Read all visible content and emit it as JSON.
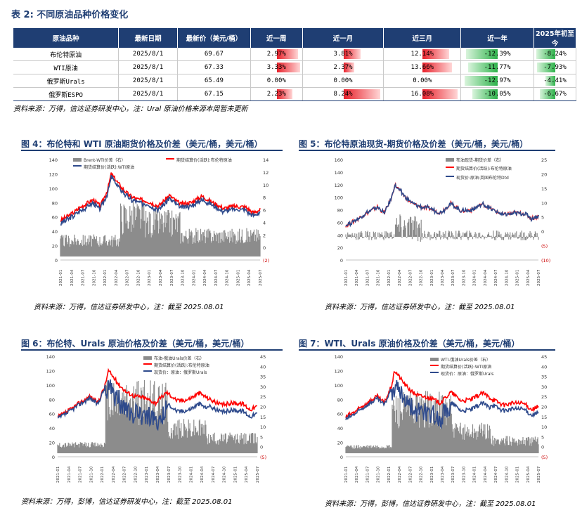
{
  "table": {
    "title": "表 2: 不同原油品种价格变化",
    "headers": [
      "原油品种",
      "最新日期",
      "最新价（美元/桶）",
      "近一周",
      "近一月",
      "近三月",
      "近一年",
      "2025年初至今"
    ],
    "rows": [
      {
        "name": "布伦特原油",
        "date": "2025/8/1",
        "price": "69.67",
        "changes": [
          "2.97%",
          "3.81%",
          "12.14%",
          "-12.39%",
          "-8.24%"
        ],
        "pcts": [
          2.97,
          3.81,
          12.14,
          -12.39,
          -8.24
        ]
      },
      {
        "name": "WTI原油",
        "date": "2025/8/1",
        "price": "67.33",
        "changes": [
          "3.33%",
          "2.37%",
          "13.66%",
          "-11.77%",
          "-7.93%"
        ],
        "pcts": [
          3.33,
          2.37,
          13.66,
          -11.77,
          -7.93
        ]
      },
      {
        "name": "俄罗斯Urals",
        "date": "2025/8/1",
        "price": "65.49",
        "changes": [
          "0.00%",
          "0.00%",
          "0.00%",
          "-12.97%",
          "-4.41%"
        ],
        "pcts": [
          0,
          0,
          0,
          -12.97,
          -4.41
        ]
      },
      {
        "name": "俄罗斯ESPO",
        "date": "2025/8/1",
        "price": "67.15",
        "changes": [
          "2.23%",
          "8.24%",
          "16.08%",
          "-10.05%",
          "-6.67%"
        ],
        "pcts": [
          2.23,
          8.24,
          16.08,
          -10.05,
          -6.67
        ]
      }
    ],
    "source": "资料来源：万得，信达证券研发中心，注：Ural 原油价格来源本周暂未更新",
    "colors": {
      "header_bg": "#1f3e73",
      "positive": "#e8202a",
      "negative": "#2db24a"
    }
  },
  "figures": [
    {
      "title": "图 4：布伦特和 WTI 原油期货价格及价差（美元/桶，美元/桶）",
      "legend": [
        "Brent-WTI价差（右）",
        "期货结算价(活跃):布伦特原油",
        "期货结算价(活跃):WTI原油"
      ],
      "source": "资料来源：万得，信达证券研发中心，注：截至 2025.08.01",
      "left_ticks": [
        "0",
        "20",
        "40",
        "60",
        "80",
        "100",
        "120",
        "140"
      ],
      "right_ticks": [
        "(2)",
        "0",
        "2",
        "4",
        "6",
        "8",
        "10",
        "12",
        "14"
      ]
    },
    {
      "title": "图 5：布伦特原油现货-期货价格及价差（美元/桶，美元/桶）",
      "legend": [
        "布油现货-期货价差（右）",
        "期货结算价(活跃):布伦特原油",
        "现货价:原油:英国布伦特Dtd"
      ],
      "source": "资料来源：万得，信达证券研发中心，注：截至 2025.08.01",
      "left_ticks": [
        "0",
        "20",
        "40",
        "60",
        "80",
        "100",
        "120",
        "140",
        "160"
      ],
      "right_ticks": [
        "(10)",
        "(5)",
        "0",
        "5",
        "10",
        "15",
        "20",
        "25"
      ]
    },
    {
      "title": "图 6：布伦特、Urals 原油价格及价差（美元/桶，美元/桶）",
      "legend": [
        "布油-俄油Urals价差（右）",
        "期货结算价(活跃):布伦特原油",
        "现货价：原油：俄罗斯Urals"
      ],
      "source": "资料来源：万得，彭博，信达证券研发中心，注：截至 2025.08.01",
      "left_ticks": [
        "0",
        "20",
        "40",
        "60",
        "80",
        "100",
        "120",
        "140"
      ],
      "right_ticks": [
        "(5)",
        "0",
        "5",
        "10",
        "15",
        "20",
        "25",
        "30",
        "35",
        "40",
        "45"
      ]
    },
    {
      "title": "图 7：WTI、Urals 原油价格及价差（美元/桶，美元/桶）",
      "legend": [
        "WTI-俄油Urals价差（右）",
        "期货结算价(活跃):WTI原油",
        "现货价：原油：俄罗斯Urals"
      ],
      "source": "资料来源：万得，彭博，信达证券研发中心，注：截至 2025.08.01",
      "left_ticks": [
        "0",
        "20",
        "40",
        "60",
        "80",
        "100",
        "120",
        "140"
      ],
      "right_ticks": [
        "(5)",
        "0",
        "5",
        "10",
        "15",
        "20",
        "25",
        "30",
        "35",
        "40",
        "45"
      ]
    }
  ],
  "x_ticks": [
    "2021-01",
    "2021-04",
    "2021-07",
    "2021-10",
    "2022-01",
    "2022-04",
    "2022-07",
    "2022-10",
    "2023-01",
    "2023-04",
    "2023-07",
    "2023-10",
    "2024-01",
    "2024-04",
    "2024-07",
    "2024-10",
    "2025-01",
    "2025-04",
    "2025-07"
  ]
}
